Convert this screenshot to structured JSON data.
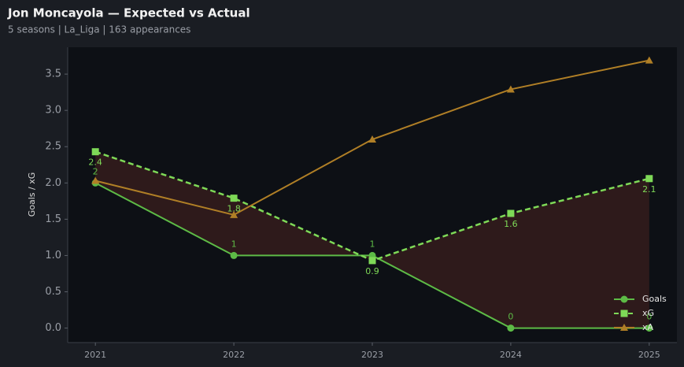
{
  "chart_data": {
    "type": "line",
    "title": "Jon Moncayola — Expected vs Actual",
    "subtitle": "5 seasons | La_Liga | 163 appearances",
    "y_label": "Goals / xG",
    "x": [
      2021,
      2022,
      2023,
      2024,
      2025
    ],
    "xlim": [
      2020.8,
      2025.2
    ],
    "xticks": [
      2021,
      2022,
      2023,
      2024,
      2025
    ],
    "ylim": [
      -0.2,
      3.87
    ],
    "yticks": [
      {
        "value": 0,
        "label": "0.0"
      },
      0.5,
      {
        "value": 1,
        "label": "1.0"
      },
      1.5,
      {
        "value": 2,
        "label": "2.0"
      },
      2.5,
      {
        "value": 3,
        "label": "3.0"
      },
      3.5
    ],
    "legend": "lower right",
    "series": [
      {
        "name": "Goals",
        "color": "#5dbb46",
        "marker": "circle",
        "dash": false,
        "values": [
          2,
          1,
          1,
          0,
          0
        ]
      },
      {
        "name": "xG",
        "color": "#7ed957",
        "marker": "square",
        "dash": true,
        "values": [
          2.43,
          1.79,
          0.93,
          1.58,
          2.06
        ],
        "value_labels": [
          "2.4",
          "1.8",
          "0.9",
          "1.6",
          "2.1"
        ]
      },
      {
        "name": "xA",
        "color": "#b07f26",
        "marker": "triangle",
        "dash": false,
        "values": [
          2.03,
          1.56,
          2.6,
          3.29,
          3.69
        ]
      }
    ]
  }
}
